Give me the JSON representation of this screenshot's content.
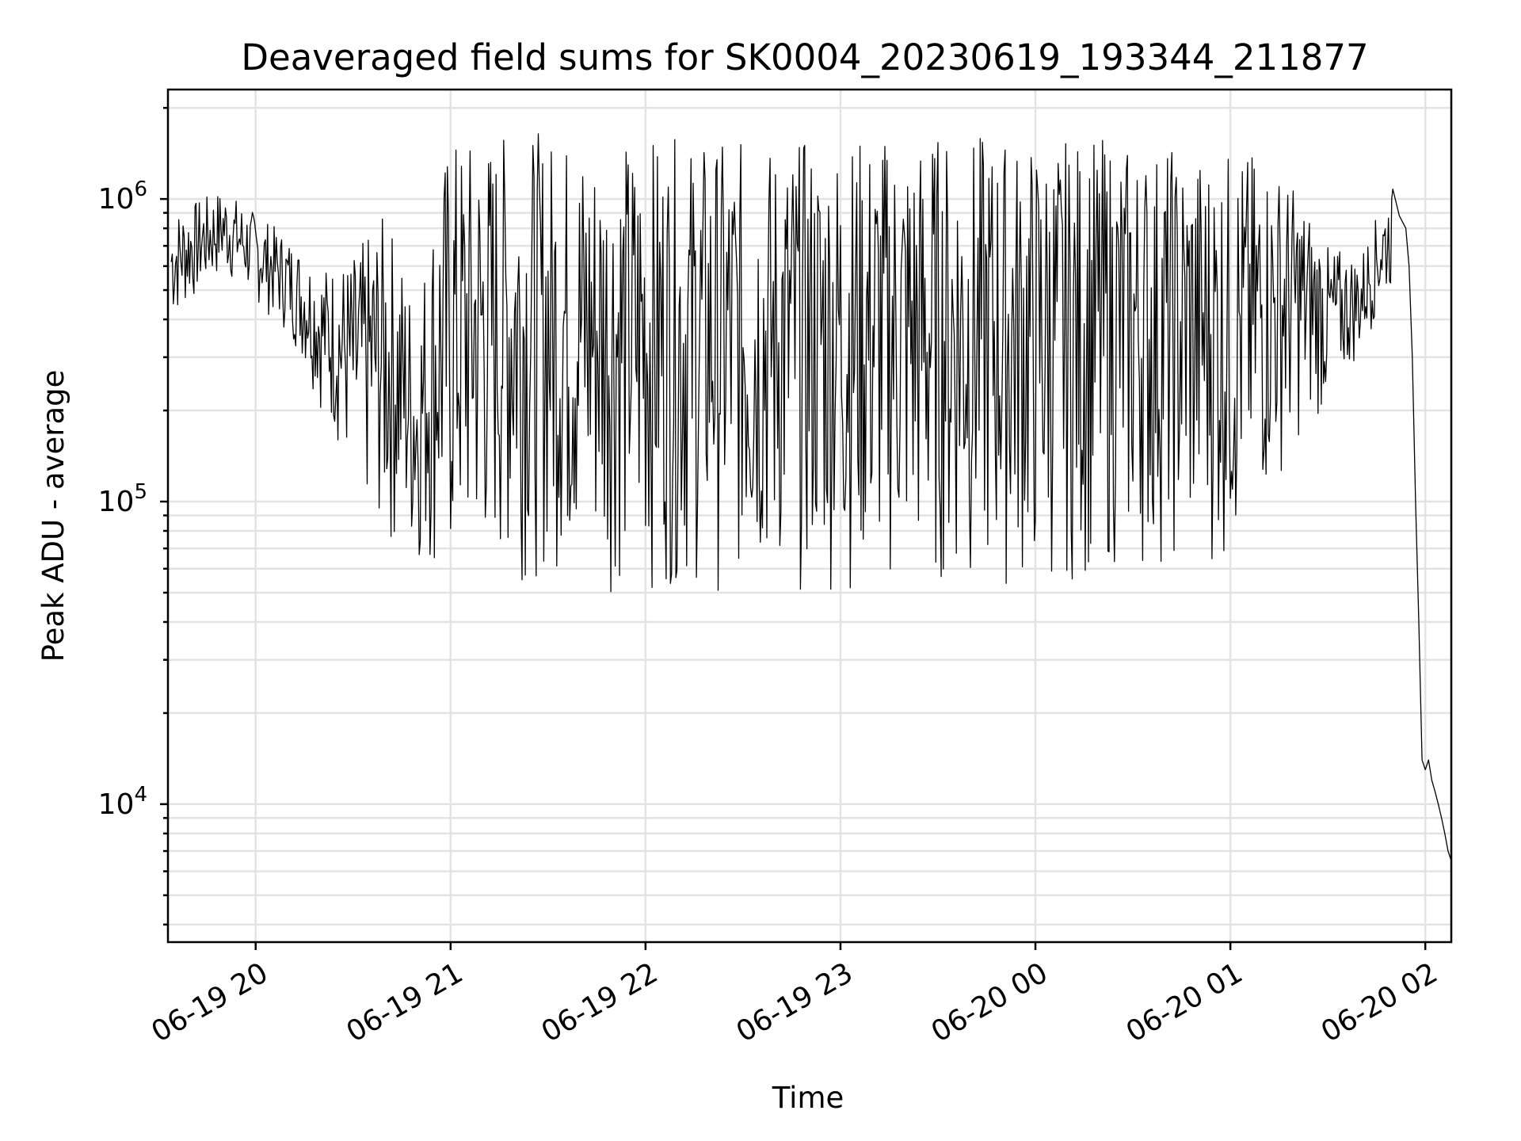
{
  "chart_data": {
    "type": "line",
    "title": "Deaveraged field sums for SK0004_20230619_193344_211877",
    "xlabel": "Time",
    "ylabel": "Peak ADU - average",
    "yscale": "log",
    "grid": true,
    "color": "#000000",
    "grid_color": "#e3e3e3",
    "x_tick_labels": [
      "06-19 20",
      "06-19 21",
      "06-19 22",
      "06-19 23",
      "06-20 00",
      "06-20 01",
      "06-20 02"
    ],
    "x_ticks": [
      "2023-06-19 20:00",
      "2023-06-19 21:00",
      "2023-06-19 22:00",
      "2023-06-19 23:00",
      "2023-06-20 00:00",
      "2023-06-20 01:00",
      "2023-06-20 02:00"
    ],
    "xlim": [
      "2023-06-19 19:33",
      "2023-06-20 02:08"
    ],
    "y_ticks": [
      {
        "value": 10000,
        "base": "10",
        "exp": "4"
      },
      {
        "value": 100000,
        "base": "10",
        "exp": "5"
      },
      {
        "value": 1000000,
        "base": "10",
        "exp": "6"
      }
    ],
    "ylim": [
      3500,
      2300000
    ],
    "series": [
      {
        "points": [
          [
            "2023-06-19 19:34",
            420000
          ],
          [
            "2023-06-19 19:36",
            560000
          ],
          [
            "2023-06-19 19:38",
            620000
          ],
          [
            "2023-06-19 19:40",
            650000
          ],
          [
            "2023-06-19 19:42",
            680000
          ],
          [
            "2023-06-19 19:44",
            700000
          ],
          [
            "2023-06-19 19:46",
            760000
          ],
          [
            "2023-06-19 19:48",
            780000
          ],
          [
            "2023-06-19 19:50",
            820000
          ],
          [
            "2023-06-19 19:52",
            800000
          ],
          [
            "2023-06-19 19:54",
            850000
          ],
          [
            "2023-06-19 19:56",
            780000
          ],
          [
            "2023-06-19 19:58",
            700000
          ],
          [
            "2023-06-19 20:00",
            650000
          ],
          [
            "2023-06-19 20:03",
            580000
          ],
          [
            "2023-06-19 20:06",
            540000
          ],
          [
            "2023-06-19 20:09",
            520000
          ],
          [
            "2023-06-19 20:12",
            480000
          ],
          [
            "2023-06-19 20:15",
            400000
          ],
          [
            "2023-06-19 20:18",
            320000
          ],
          [
            "2023-06-19 20:21",
            240000
          ],
          [
            "2023-06-19 20:24",
            180000
          ],
          [
            "2023-06-19 20:27",
            140000
          ],
          [
            "2023-06-19 20:30",
            150000
          ],
          [
            "2023-06-19 20:33",
            130000
          ],
          [
            "2023-06-19 20:36",
            120000
          ],
          [
            "2023-06-19 20:39",
            115000
          ],
          [
            "2023-06-19 20:42",
            100000
          ],
          [
            "2023-06-19 20:45",
            90000
          ],
          [
            "2023-06-19 20:48",
            88000
          ],
          [
            "2023-06-19 20:51",
            85000
          ],
          [
            "2023-06-19 20:54",
            84000
          ],
          [
            "2023-06-19 20:57",
            82000
          ],
          [
            "2023-06-19 21:00",
            85000
          ],
          [
            "2023-06-19 21:05",
            80000
          ],
          [
            "2023-06-19 21:10",
            75000
          ],
          [
            "2023-06-19 21:15",
            78000
          ],
          [
            "2023-06-19 21:20",
            80000
          ],
          [
            "2023-06-19 21:25",
            82000
          ],
          [
            "2023-06-19 21:30",
            85000
          ],
          [
            "2023-06-19 21:35",
            80000
          ],
          [
            "2023-06-19 21:40",
            78000
          ],
          [
            "2023-06-19 21:45",
            76000
          ],
          [
            "2023-06-19 21:50",
            74000
          ],
          [
            "2023-06-19 21:55",
            75000
          ],
          [
            "2023-06-19 22:00",
            76000
          ],
          [
            "2023-06-19 22:10",
            80000
          ],
          [
            "2023-06-19 22:20",
            90000
          ],
          [
            "2023-06-19 22:30",
            100000
          ],
          [
            "2023-06-19 22:40",
            110000
          ],
          [
            "2023-06-19 22:50",
            120000
          ],
          [
            "2023-06-19 23:00",
            130000
          ],
          [
            "2023-06-19 23:15",
            150000
          ],
          [
            "2023-06-19 23:30",
            170000
          ],
          [
            "2023-06-19 23:45",
            180000
          ],
          [
            "2023-06-20 00:00",
            200000
          ],
          [
            "2023-06-20 00:15",
            190000
          ],
          [
            "2023-06-20 00:30",
            180000
          ],
          [
            "2023-06-20 00:45",
            160000
          ],
          [
            "2023-06-20 01:00",
            150000
          ],
          [
            "2023-06-20 01:05",
            140000
          ],
          [
            "2023-06-20 01:10",
            160000
          ],
          [
            "2023-06-20 01:15",
            190000
          ],
          [
            "2023-06-20 01:20",
            230000
          ],
          [
            "2023-06-20 01:25",
            280000
          ],
          [
            "2023-06-20 01:30",
            300000
          ],
          [
            "2023-06-20 01:35",
            320000
          ],
          [
            "2023-06-20 01:40",
            380000
          ],
          [
            "2023-06-20 01:45",
            450000
          ],
          [
            "2023-06-20 01:48",
            600000
          ],
          [
            "2023-06-20 01:50",
            750000
          ],
          [
            "2023-06-20 01:52",
            880000
          ],
          [
            "2023-06-20 01:54",
            800000
          ],
          [
            "2023-06-20 01:55",
            600000
          ],
          [
            "2023-06-20 01:56",
            300000
          ],
          [
            "2023-06-20 01:57",
            100000
          ],
          [
            "2023-06-20 01:58",
            40000
          ],
          [
            "2023-06-20 01:59",
            14000
          ],
          [
            "2023-06-20 02:00",
            13000
          ],
          [
            "2023-06-20 02:01",
            14000
          ],
          [
            "2023-06-20 02:02",
            12000
          ],
          [
            "2023-06-20 02:03",
            11000
          ],
          [
            "2023-06-20 02:04",
            10000
          ],
          [
            "2023-06-20 02:05",
            9000
          ],
          [
            "2023-06-20 02:06",
            8000
          ],
          [
            "2023-06-20 02:07",
            7000
          ],
          [
            "2023-06-20 02:08",
            6500
          ]
        ],
        "envelope": [
          [
            "2023-06-19 19:34",
            380000,
            900000
          ],
          [
            "2023-06-19 19:50",
            550000,
            1080000
          ],
          [
            "2023-06-19 20:00",
            450000,
            900000
          ],
          [
            "2023-06-19 20:10",
            350000,
            750000
          ],
          [
            "2023-06-19 20:20",
            200000,
            600000
          ],
          [
            "2023-06-19 20:30",
            100000,
            650000
          ],
          [
            "2023-06-19 20:40",
            70000,
            900000
          ],
          [
            "2023-06-19 20:50",
            60000,
            400000
          ],
          [
            "2023-06-19 21:00",
            50000,
            1600000
          ],
          [
            "2023-06-19 21:10",
            55000,
            1600000
          ],
          [
            "2023-06-19 21:20",
            55000,
            1700000
          ],
          [
            "2023-06-19 21:30",
            55000,
            1650000
          ],
          [
            "2023-06-19 21:40",
            55000,
            1600000
          ],
          [
            "2023-06-19 21:50",
            50000,
            1550000
          ],
          [
            "2023-06-19 22:00",
            50000,
            1600000
          ],
          [
            "2023-06-19 22:20",
            50000,
            1550000
          ],
          [
            "2023-06-19 22:40",
            48000,
            1550000
          ],
          [
            "2023-06-19 23:00",
            50000,
            1600000
          ],
          [
            "2023-06-19 23:20",
            50000,
            1650000
          ],
          [
            "2023-06-19 23:40",
            50000,
            1650000
          ],
          [
            "2023-06-20 00:00",
            50000,
            1550000
          ],
          [
            "2023-06-20 00:20",
            55000,
            1600000
          ],
          [
            "2023-06-20 00:40",
            60000,
            1500000
          ],
          [
            "2023-06-20 01:00",
            60000,
            1450000
          ],
          [
            "2023-06-20 01:10",
            90000,
            1400000
          ],
          [
            "2023-06-20 01:20",
            150000,
            1100000
          ],
          [
            "2023-06-20 01:30",
            200000,
            700000
          ],
          [
            "2023-06-20 01:40",
            300000,
            650000
          ],
          [
            "2023-06-20 01:50",
            500000,
            1100000
          ]
        ]
      }
    ]
  }
}
